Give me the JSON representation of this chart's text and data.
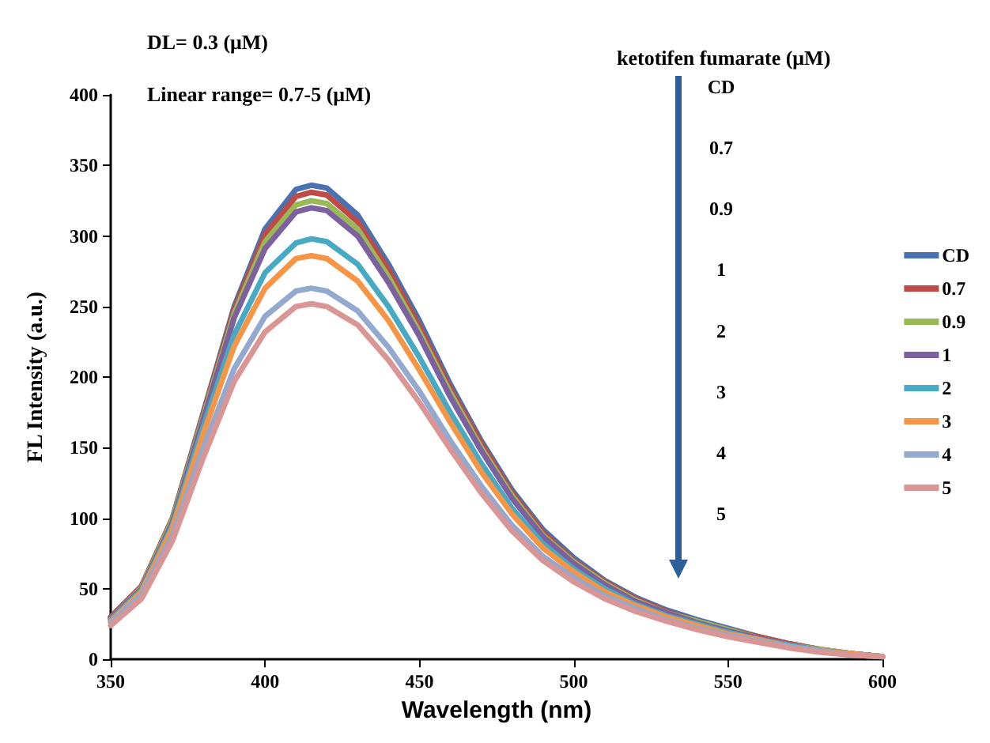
{
  "chart_data": {
    "type": "line",
    "xlabel": "Wavelength (nm)",
    "ylabel": "FL Intensity (a.u.)",
    "x": [
      350,
      360,
      370,
      380,
      390,
      400,
      410,
      415,
      420,
      430,
      440,
      450,
      460,
      470,
      480,
      490,
      500,
      510,
      520,
      530,
      540,
      550,
      560,
      570,
      580,
      590,
      600
    ],
    "series": [
      {
        "name": "CD",
        "color": "#4a72b0",
        "values": [
          30,
          52,
          100,
          175,
          250,
          305,
          333,
          336,
          334,
          315,
          280,
          240,
          195,
          155,
          120,
          92,
          72,
          56,
          44,
          35,
          28,
          22,
          16,
          11,
          7,
          4,
          2
        ]
      },
      {
        "name": "0.7",
        "color": "#be4b48",
        "values": [
          30,
          52,
          100,
          174,
          248,
          301,
          328,
          331,
          329,
          310,
          276,
          236,
          192,
          153,
          118,
          90,
          70,
          55,
          43,
          34,
          27,
          21,
          16,
          11,
          7,
          4,
          2
        ]
      },
      {
        "name": "0.9",
        "color": "#98b954",
        "values": [
          29,
          51,
          99,
          172,
          245,
          296,
          322,
          325,
          323,
          305,
          271,
          232,
          189,
          150,
          116,
          88,
          69,
          54,
          42,
          33,
          27,
          21,
          15,
          10,
          7,
          4,
          2
        ]
      },
      {
        "name": "1",
        "color": "#7d60a0",
        "values": [
          29,
          50,
          97,
          170,
          242,
          291,
          317,
          320,
          318,
          300,
          267,
          229,
          186,
          148,
          114,
          87,
          68,
          53,
          41,
          33,
          26,
          20,
          15,
          10,
          6,
          4,
          2
        ]
      },
      {
        "name": "2",
        "color": "#46aac5",
        "values": [
          28,
          49,
          95,
          165,
          230,
          274,
          295,
          298,
          296,
          280,
          250,
          214,
          175,
          139,
          107,
          82,
          64,
          50,
          39,
          31,
          25,
          19,
          14,
          10,
          6,
          4,
          2
        ]
      },
      {
        "name": "3",
        "color": "#f69545",
        "values": [
          27,
          48,
          93,
          160,
          222,
          263,
          284,
          286,
          284,
          268,
          240,
          205,
          168,
          133,
          103,
          79,
          62,
          48,
          38,
          30,
          24,
          18,
          14,
          9,
          6,
          4,
          2
        ]
      },
      {
        "name": "4",
        "color": "#93a9cf",
        "values": [
          26,
          46,
          88,
          150,
          206,
          243,
          261,
          263,
          261,
          247,
          221,
          190,
          155,
          123,
          95,
          73,
          58,
          45,
          36,
          28,
          22,
          17,
          13,
          9,
          6,
          3,
          2
        ]
      },
      {
        "name": "5",
        "color": "#d99694",
        "values": [
          24,
          43,
          84,
          143,
          197,
          232,
          250,
          252,
          250,
          237,
          212,
          182,
          149,
          118,
          91,
          70,
          55,
          43,
          34,
          27,
          21,
          16,
          12,
          8,
          5,
          3,
          2
        ]
      }
    ],
    "xlim": [
      350,
      600
    ],
    "xticks": [
      350,
      400,
      450,
      500,
      550,
      600
    ],
    "ylim": [
      0,
      400
    ],
    "yticks": [
      0,
      50,
      100,
      150,
      200,
      250,
      300,
      350,
      400
    ],
    "grid": false,
    "legend": "right",
    "marker": "none",
    "line_style": "solid",
    "annotations": [
      "DL= 0.3 (μM)",
      "Linear range= 0.7-5 (μM)",
      "ketotifen fumarate (μM)",
      "CD",
      "0.7",
      "0.9",
      "1",
      "2",
      "3",
      "4",
      "5"
    ]
  }
}
